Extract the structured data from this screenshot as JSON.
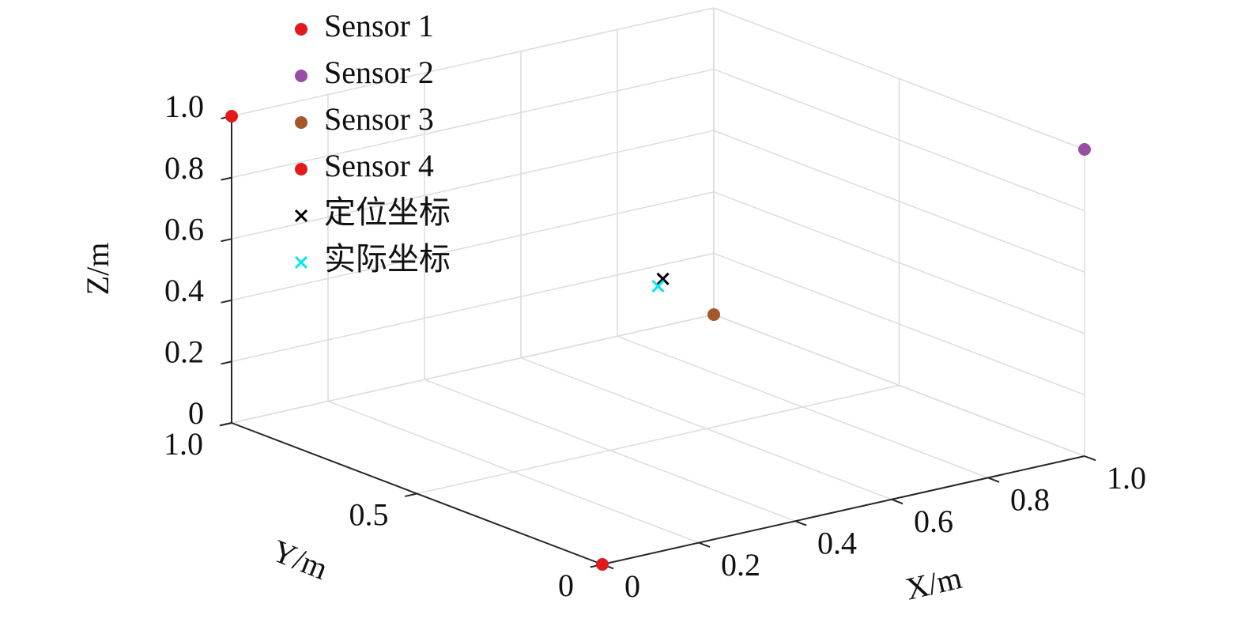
{
  "chart_data": {
    "type": "scatter3d",
    "xlabel": "X/m",
    "ylabel": "Y/m",
    "zlabel": "Z/m",
    "xlim": [
      0,
      1
    ],
    "ylim": [
      0,
      1
    ],
    "zlim": [
      0,
      1
    ],
    "xticks": [
      0,
      0.2,
      0.4,
      0.6,
      0.8,
      {
        "value": 1,
        "label": "1.0"
      }
    ],
    "yticks": [
      0,
      0.5,
      {
        "value": 1,
        "label": "1.0"
      }
    ],
    "zticks": [
      0,
      0.2,
      0.4,
      0.6,
      0.8,
      {
        "value": 1,
        "label": "1.0"
      }
    ],
    "grid": true,
    "legend": "upper left",
    "series": [
      {
        "name": "Sensor 1",
        "color": "#e31a1c",
        "marker": "o",
        "x": [
          0
        ],
        "y": [
          1
        ],
        "z": [
          1
        ]
      },
      {
        "name": "Sensor 2",
        "color": "#984ea3",
        "marker": "o",
        "x": [
          1
        ],
        "y": [
          0
        ],
        "z": [
          1
        ]
      },
      {
        "name": "Sensor 3",
        "color": "#a65628",
        "marker": "o",
        "x": [
          1
        ],
        "y": [
          1
        ],
        "z": [
          0
        ]
      },
      {
        "name": "Sensor 4",
        "color": "#e31a1c",
        "marker": "o",
        "x": [
          0
        ],
        "y": [
          0
        ],
        "z": [
          0
        ]
      },
      {
        "name": "定位坐标",
        "color": "#000000",
        "marker": "x",
        "x": [
          0.51
        ],
        "y": [
          0.5
        ],
        "z": [
          0.52
        ]
      },
      {
        "name": "实际坐标",
        "color": "#00e5ee",
        "marker": "x",
        "x": [
          0.5
        ],
        "y": [
          0.5
        ],
        "z": [
          0.5
        ]
      }
    ]
  }
}
